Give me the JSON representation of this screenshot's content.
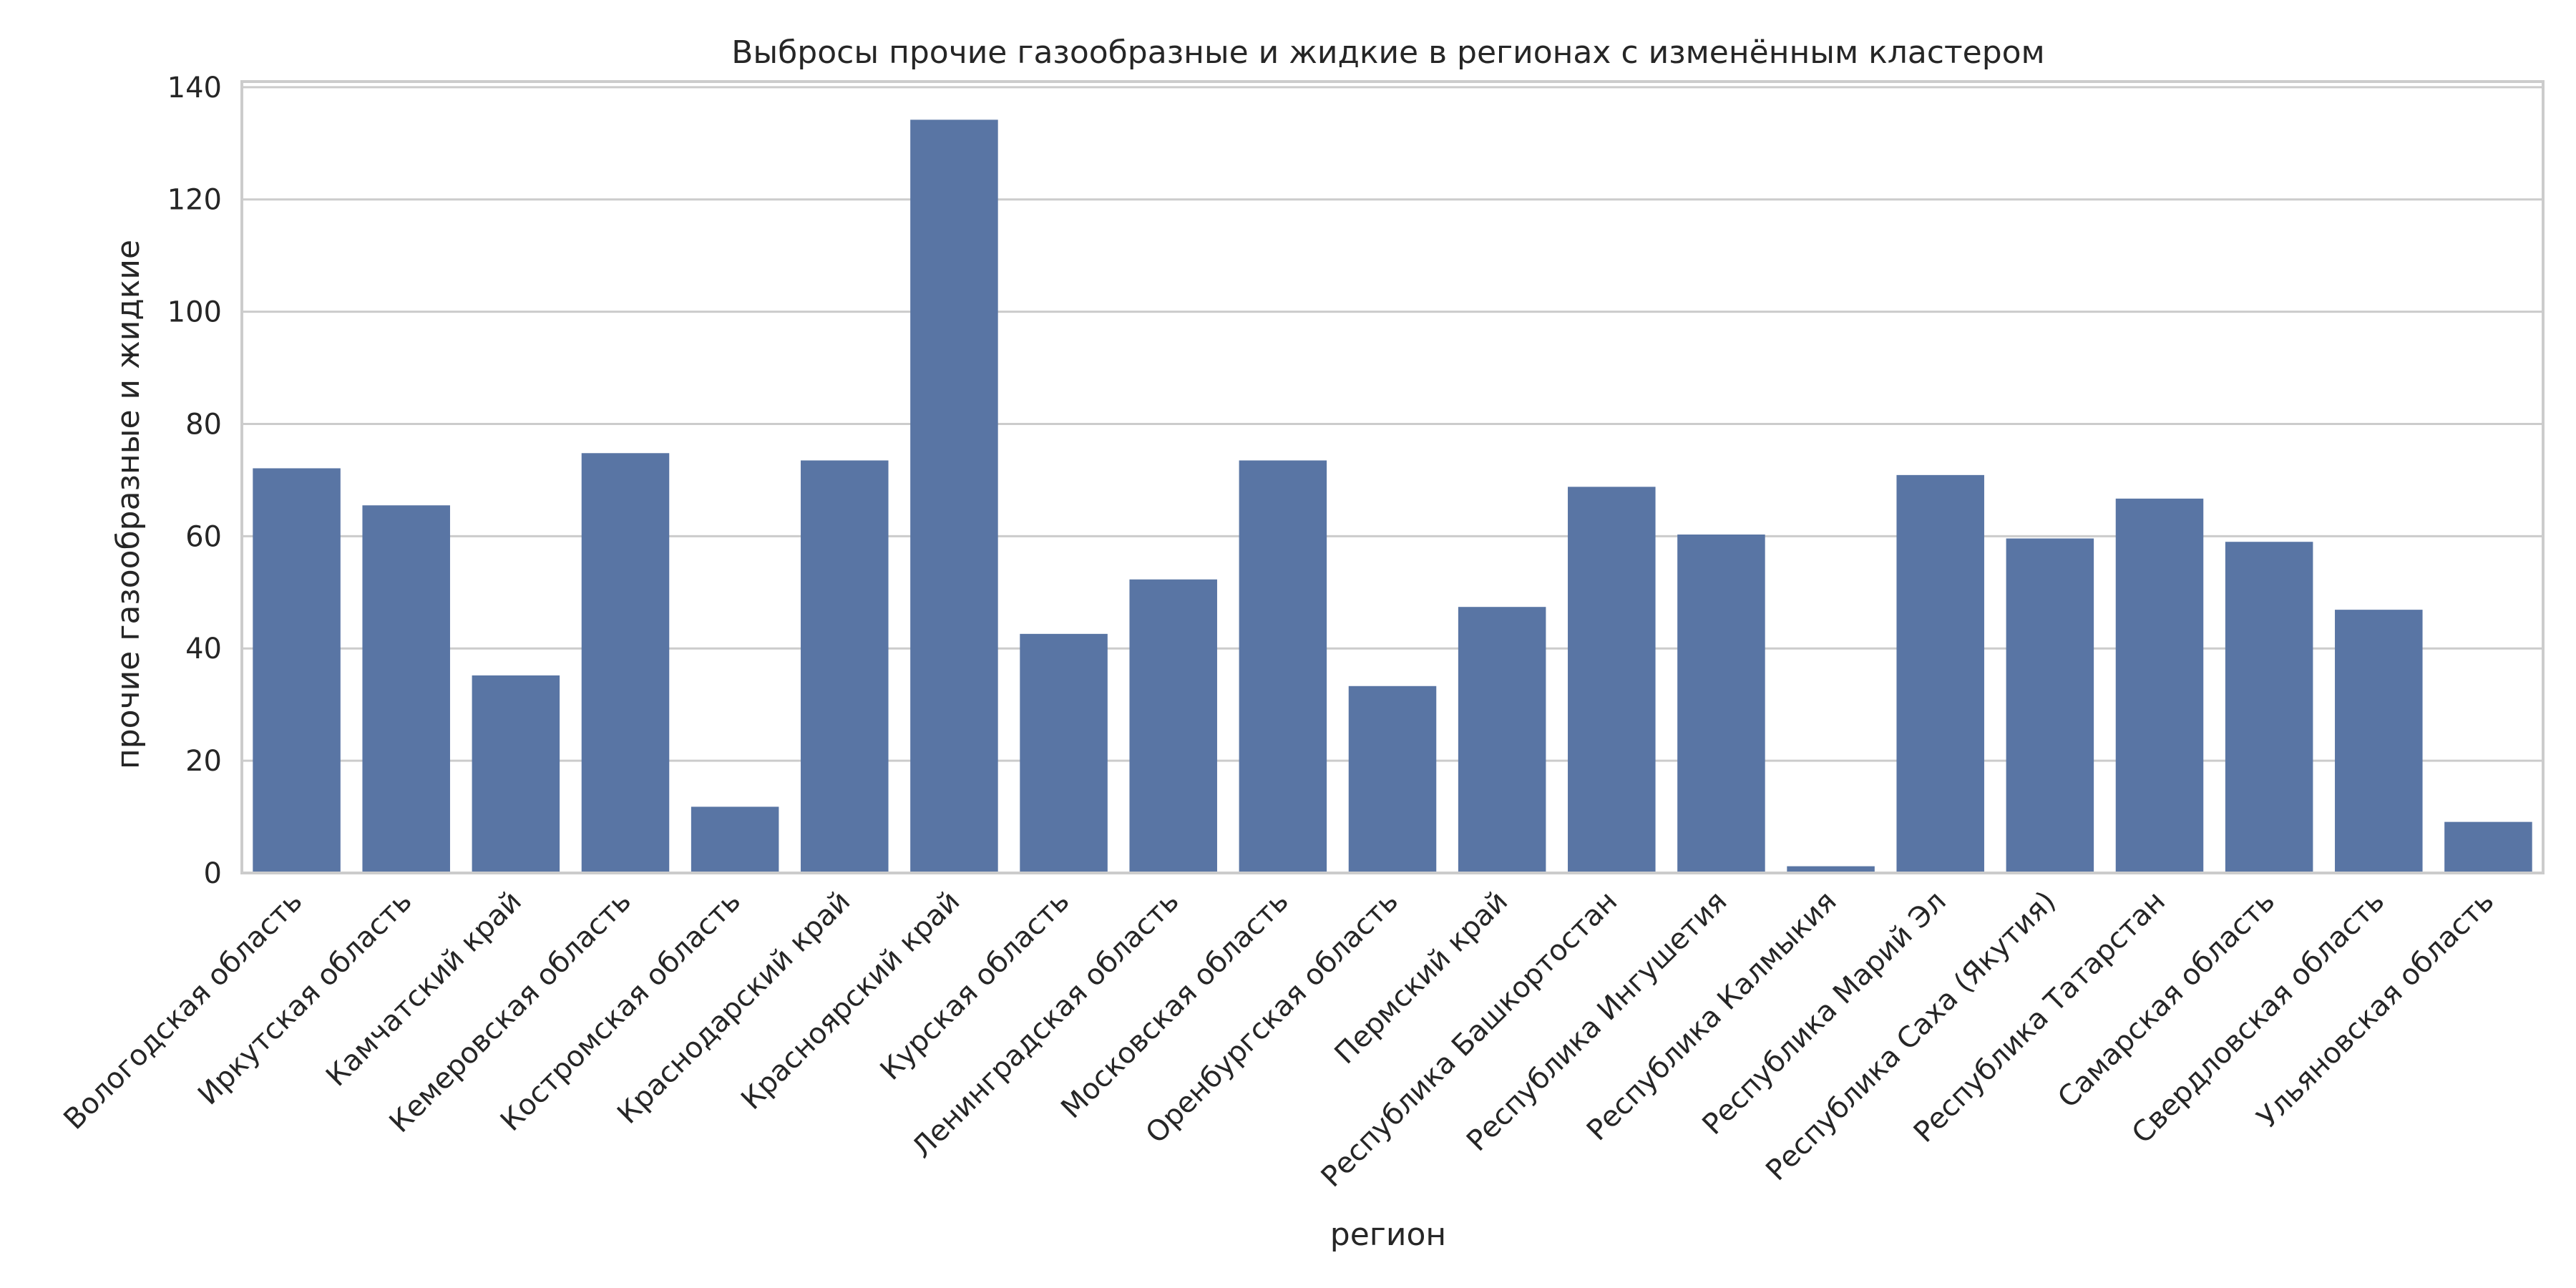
{
  "chart_data": {
    "type": "bar",
    "title": "Выбросы прочие газообразные и жидкие в регионах с изменённым кластером",
    "xlabel": "регион",
    "ylabel": "прочие газообразные и жидкие",
    "ylim": [
      0,
      141
    ],
    "yticks": [
      0,
      20,
      40,
      60,
      80,
      100,
      120,
      140
    ],
    "grid": "horizontal",
    "bar_color": "#5975a4",
    "categories": [
      "Вологодская область",
      "Иркутская область",
      "Камчатский край",
      "Кемеровская область",
      "Костромская область",
      "Краснодарский край",
      "Красноярский край",
      "Курская область",
      "Ленинградская область",
      "Московская область",
      "Оренбургская область",
      "Пермский край",
      "Республика Башкортостан",
      "Республика Ингушетия",
      "Республика Калмыкия",
      "Республика Марий Эл",
      "Республика Саха (Якутия)",
      "Республика Татарстан",
      "Самарская область",
      "Свердловская область",
      "Ульяновская область"
    ],
    "values": [
      72.1,
      65.5,
      35.2,
      74.8,
      11.8,
      73.5,
      134.2,
      42.6,
      52.3,
      73.5,
      33.3,
      47.4,
      68.8,
      60.3,
      1.2,
      70.9,
      59.6,
      66.7,
      59.0,
      46.9,
      9.1
    ]
  }
}
